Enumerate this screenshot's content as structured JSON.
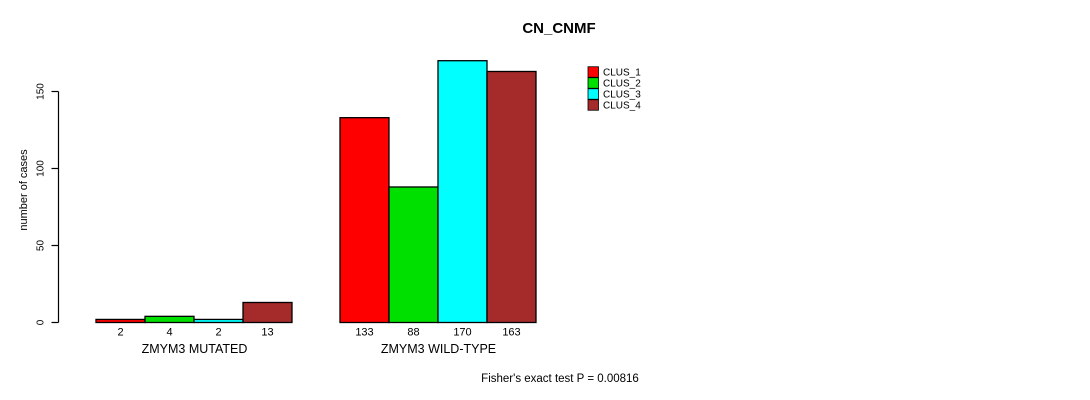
{
  "chart_data": {
    "type": "bar",
    "title": "CN_CNMF",
    "ylabel": "number of cases",
    "xlabel": "",
    "yticks": [
      0,
      50,
      100,
      150
    ],
    "ylim": [
      0,
      175
    ],
    "grid": false,
    "legend_position": "top-right",
    "categories": [
      "ZMYM3 MUTATED",
      "ZMYM3 WILD-TYPE"
    ],
    "series": [
      {
        "name": "CLUS_1",
        "color": "#FF0000",
        "values": [
          2,
          133
        ]
      },
      {
        "name": "CLUS_2",
        "color": "#00E000",
        "values": [
          4,
          88
        ]
      },
      {
        "name": "CLUS_3",
        "color": "#00FFFF",
        "values": [
          2,
          170
        ]
      },
      {
        "name": "CLUS_4",
        "color": "#A52A2A",
        "values": [
          13,
          163
        ]
      }
    ],
    "annotation": "Fisher's exact test P = 0.00816",
    "axis_color": "#000000",
    "bar_outline_color": "#000000"
  }
}
